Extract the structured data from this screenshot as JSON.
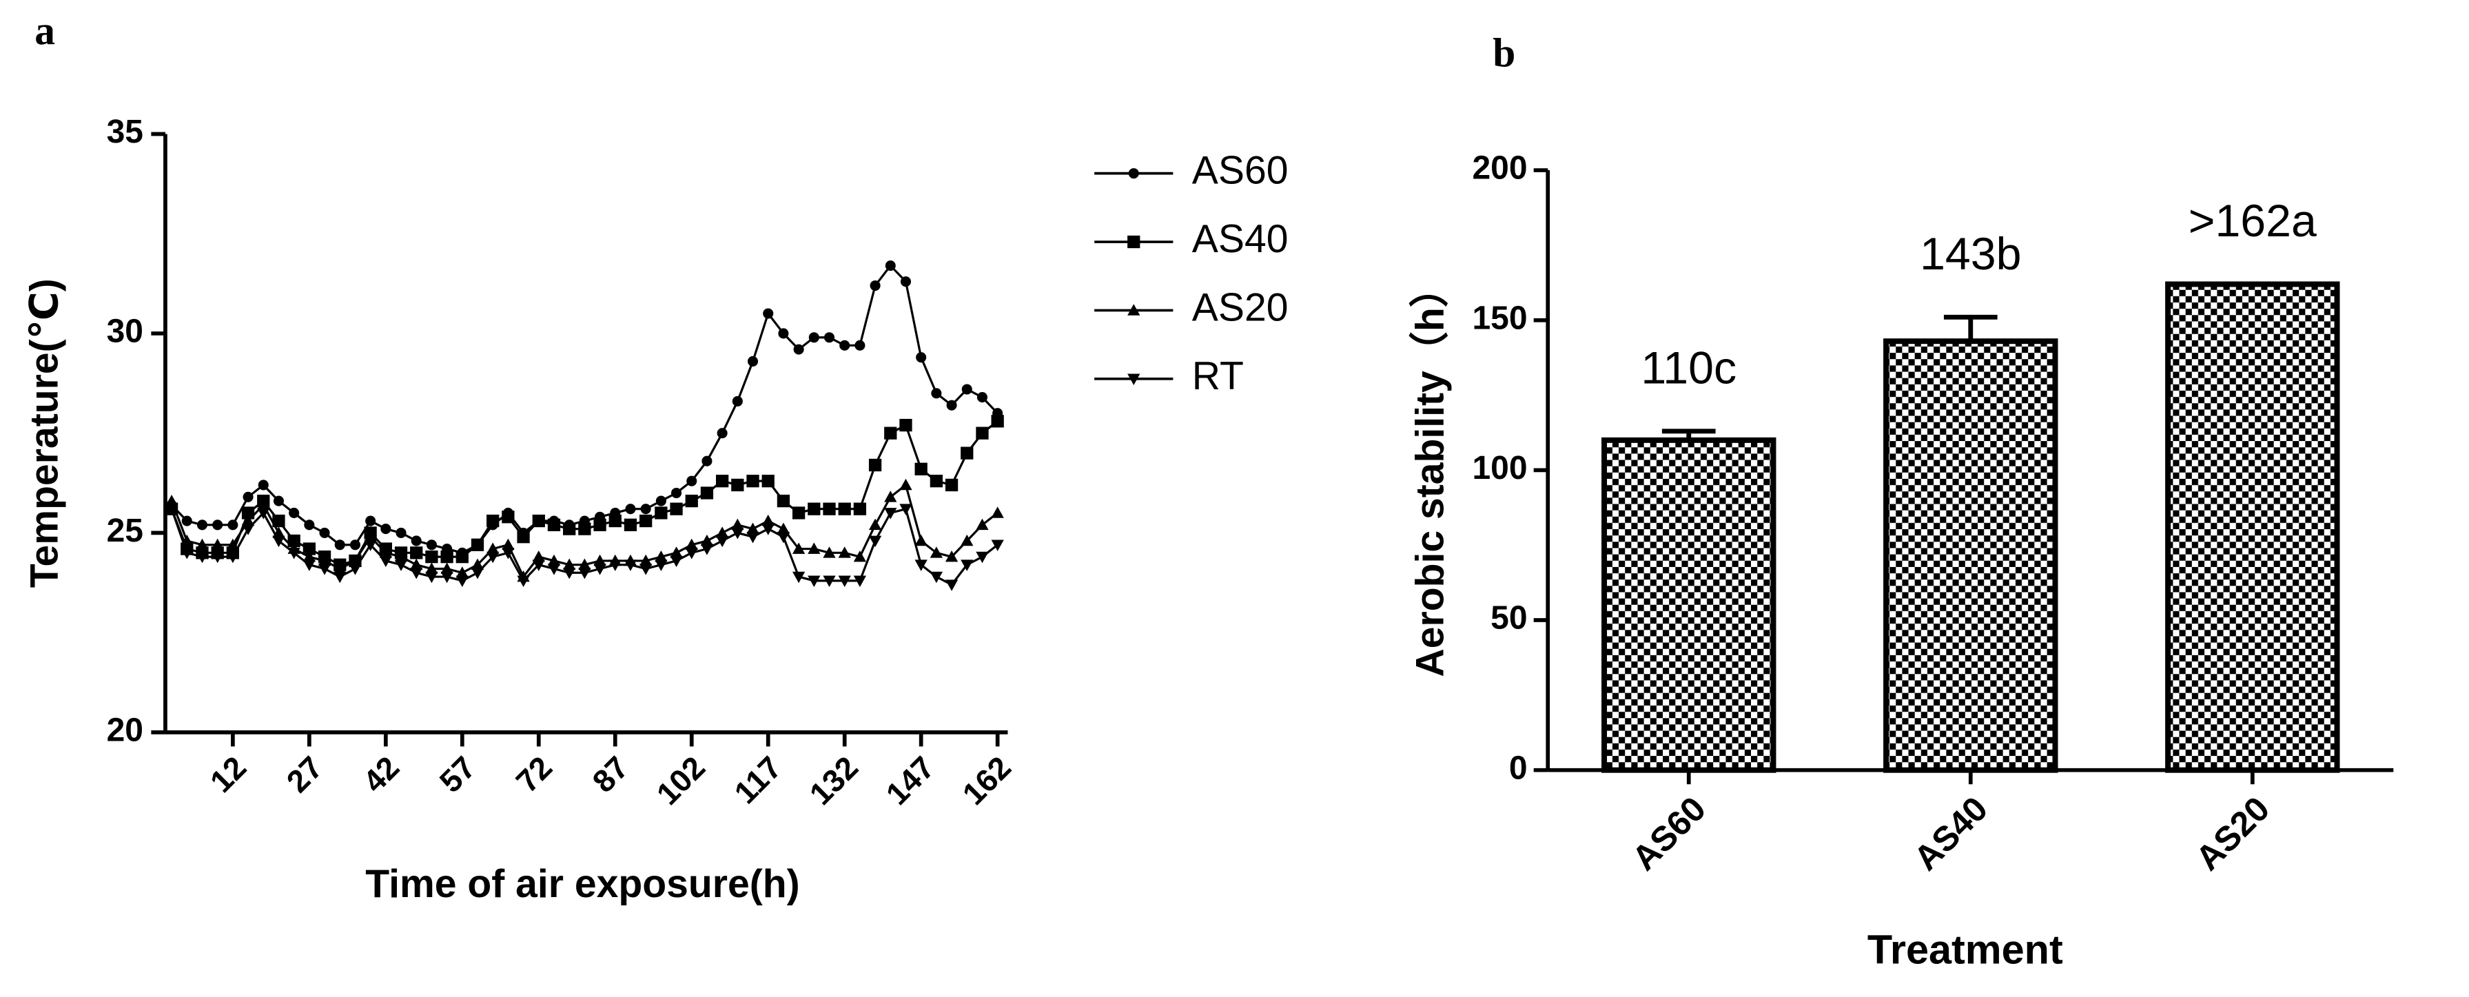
{
  "chart_data": [
    {
      "type": "line",
      "panel": "a",
      "xlabel": "Time of air exposure(h)",
      "ylabel": "Temperature(℃)",
      "x": [
        0,
        3,
        6,
        9,
        12,
        15,
        18,
        21,
        24,
        27,
        30,
        33,
        36,
        39,
        42,
        45,
        48,
        51,
        54,
        57,
        60,
        63,
        66,
        69,
        72,
        75,
        78,
        81,
        84,
        87,
        90,
        93,
        96,
        99,
        102,
        105,
        108,
        111,
        114,
        117,
        120,
        123,
        126,
        129,
        132,
        135,
        138,
        141,
        144,
        147,
        150,
        153,
        156,
        159,
        162
      ],
      "xlim": [
        0,
        164
      ],
      "xticks": [
        12,
        27,
        42,
        57,
        72,
        87,
        102,
        117,
        132,
        147,
        162
      ],
      "ylim": [
        20,
        35
      ],
      "yticks": [
        20,
        25,
        30,
        35
      ],
      "series": [
        {
          "name": "AS60",
          "color": "#000000",
          "marker": "circle",
          "values": [
            25.7,
            25.3,
            25.2,
            25.2,
            25.2,
            25.9,
            26.2,
            25.8,
            25.5,
            25.2,
            25.0,
            24.7,
            24.7,
            25.3,
            25.1,
            25.0,
            24.8,
            24.7,
            24.6,
            24.5,
            24.7,
            25.2,
            25.5,
            25.0,
            25.3,
            25.3,
            25.2,
            25.3,
            25.4,
            25.5,
            25.6,
            25.6,
            25.8,
            26.0,
            26.3,
            26.8,
            27.5,
            28.3,
            29.3,
            30.5,
            30.0,
            29.6,
            29.9,
            29.9,
            29.7,
            29.7,
            31.2,
            31.7,
            31.3,
            29.4,
            28.5,
            28.2,
            28.6,
            28.4,
            28.0
          ]
        },
        {
          "name": "AS40",
          "color": "#000000",
          "marker": "square",
          "values": [
            25.6,
            24.6,
            24.5,
            24.5,
            24.5,
            25.5,
            25.8,
            25.3,
            24.8,
            24.6,
            24.4,
            24.2,
            24.3,
            25.0,
            24.6,
            24.5,
            24.5,
            24.4,
            24.4,
            24.4,
            24.7,
            25.3,
            25.4,
            24.9,
            25.3,
            25.2,
            25.1,
            25.1,
            25.2,
            25.3,
            25.2,
            25.3,
            25.5,
            25.6,
            25.8,
            26.0,
            26.3,
            26.2,
            26.3,
            26.3,
            25.8,
            25.5,
            25.6,
            25.6,
            25.6,
            25.6,
            26.7,
            27.5,
            27.7,
            26.6,
            26.3,
            26.2,
            27.0,
            27.5,
            27.8
          ]
        },
        {
          "name": "AS20",
          "color": "#000000",
          "marker": "triangle-up",
          "values": [
            25.8,
            24.8,
            24.7,
            24.7,
            24.7,
            25.3,
            25.7,
            25.0,
            24.6,
            24.4,
            24.3,
            24.1,
            24.3,
            24.9,
            24.5,
            24.4,
            24.2,
            24.1,
            24.1,
            24.0,
            24.2,
            24.6,
            24.7,
            23.9,
            24.4,
            24.3,
            24.2,
            24.2,
            24.3,
            24.3,
            24.3,
            24.3,
            24.4,
            24.5,
            24.7,
            24.8,
            25.0,
            25.2,
            25.1,
            25.3,
            25.1,
            24.6,
            24.6,
            24.5,
            24.5,
            24.4,
            25.2,
            25.9,
            26.2,
            24.8,
            24.5,
            24.4,
            24.8,
            25.2,
            25.5
          ]
        },
        {
          "name": "RT",
          "color": "#000000",
          "marker": "triangle-down",
          "values": [
            25.6,
            24.5,
            24.4,
            24.4,
            24.4,
            25.1,
            25.5,
            24.8,
            24.5,
            24.2,
            24.1,
            23.9,
            24.1,
            24.7,
            24.3,
            24.2,
            24.0,
            23.9,
            23.9,
            23.8,
            24.0,
            24.4,
            24.5,
            23.8,
            24.2,
            24.1,
            24.0,
            24.0,
            24.1,
            24.2,
            24.2,
            24.1,
            24.2,
            24.3,
            24.5,
            24.6,
            24.8,
            25.0,
            24.9,
            25.1,
            24.9,
            23.9,
            23.8,
            23.8,
            23.8,
            23.8,
            24.8,
            25.5,
            25.6,
            24.2,
            23.9,
            23.7,
            24.2,
            24.4,
            24.7
          ]
        }
      ]
    },
    {
      "type": "bar",
      "panel": "b",
      "xlabel": "Treatment",
      "ylabel": "Aerobic stability（h）",
      "categories": [
        "AS60",
        "AS40",
        "AS20"
      ],
      "values": [
        110,
        143,
        162
      ],
      "errors": [
        3,
        8,
        0
      ],
      "value_labels": [
        "110c",
        "143b",
        ">162a"
      ],
      "pattern": "checkerboard",
      "color": "#000000",
      "ylim": [
        0,
        200
      ],
      "yticks": [
        0,
        50,
        100,
        150,
        200
      ]
    }
  ]
}
